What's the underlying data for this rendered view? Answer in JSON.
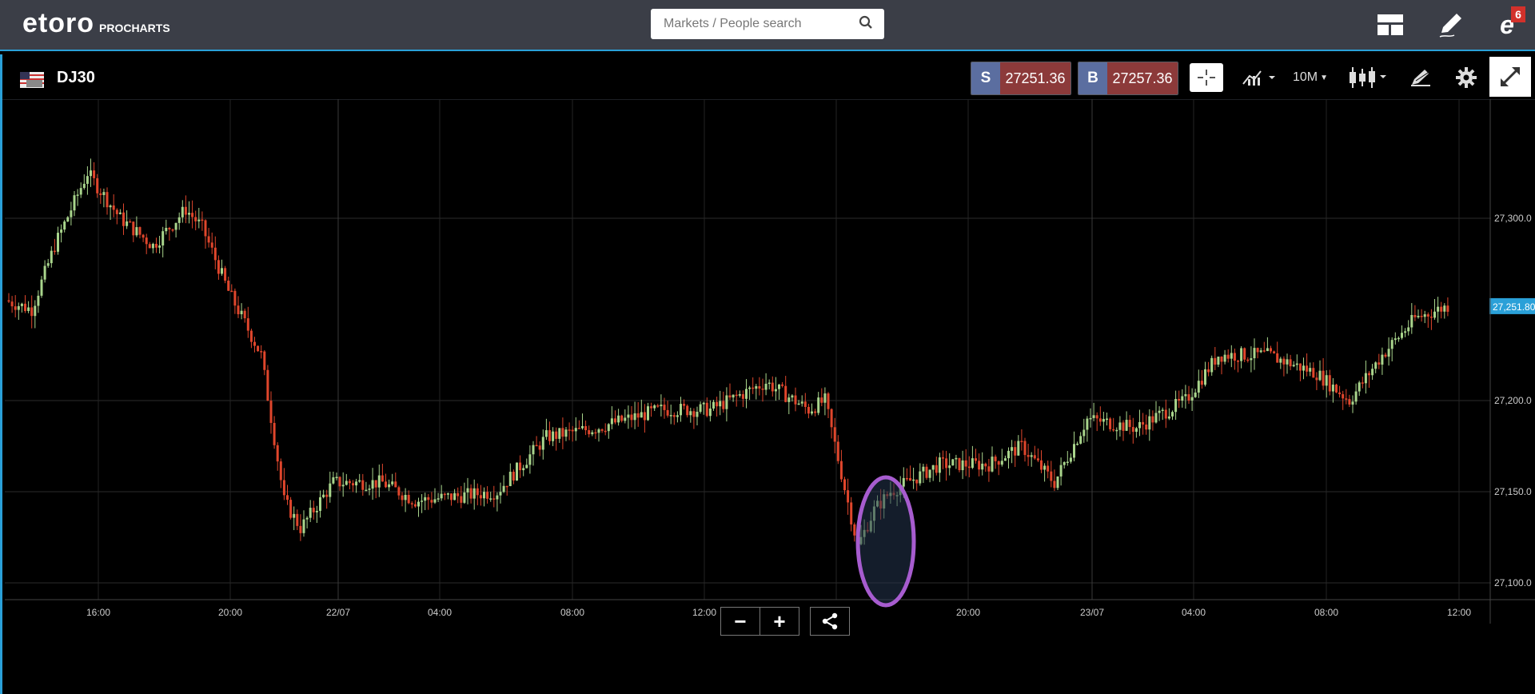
{
  "header": {
    "logo_text": "etoro",
    "logo_sub": "PROCHARTS",
    "search_placeholder": "Markets / People search",
    "notification_count": "6",
    "icons": [
      "layout-icon",
      "edit-icon",
      "profile-icon",
      "search-icon"
    ]
  },
  "instrument": {
    "symbol": "DJ30",
    "sell_label": "S",
    "sell_price": "27251.36",
    "buy_label": "B",
    "buy_price": "27257.36"
  },
  "toolbar": {
    "interval": "10M",
    "icons": [
      "crosshair-icon",
      "indicators-icon",
      "candlestick-icon",
      "drawing-icon",
      "gear-icon",
      "fullscreen-icon"
    ]
  },
  "chart_controls": {
    "zoom_out": "−",
    "zoom_in": "+",
    "share_icon": "share-icon"
  },
  "colors": {
    "up": "#a9d58c",
    "down": "#e0462c",
    "accent": "#2aa0d8",
    "highlight": "#9b59b6"
  },
  "chart_data": {
    "type": "candlestick",
    "ylim": [
      27090,
      27345
    ],
    "y_ticks": [
      {
        "value": 27300,
        "label": "27,300.0"
      },
      {
        "value": 27250,
        "label": "27,251.80",
        "current": true
      },
      {
        "value": 27200,
        "label": "27,200.0"
      },
      {
        "value": 27150,
        "label": "27,150.0"
      },
      {
        "value": 27100,
        "label": "27,100.0"
      }
    ],
    "x_ticks": [
      "16:00",
      "20:00",
      "22/07",
      "04:00",
      "08:00",
      "12:00",
      "16:00",
      "20:00",
      "23/07",
      "04:00",
      "08:00",
      "12:00"
    ],
    "waypoints": [
      [
        0,
        27255
      ],
      [
        8,
        27250
      ],
      [
        15,
        27285
      ],
      [
        25,
        27325
      ],
      [
        35,
        27300
      ],
      [
        45,
        27285
      ],
      [
        55,
        27305
      ],
      [
        60,
        27295
      ],
      [
        68,
        27260
      ],
      [
        78,
        27225
      ],
      [
        85,
        27145
      ],
      [
        90,
        27130
      ],
      [
        100,
        27155
      ],
      [
        115,
        27155
      ],
      [
        125,
        27145
      ],
      [
        140,
        27148
      ],
      [
        150,
        27150
      ],
      [
        165,
        27180
      ],
      [
        180,
        27185
      ],
      [
        200,
        27195
      ],
      [
        215,
        27195
      ],
      [
        232,
        27210
      ],
      [
        245,
        27195
      ],
      [
        250,
        27200
      ],
      [
        255,
        27160
      ],
      [
        260,
        27120
      ],
      [
        265,
        27140
      ],
      [
        270,
        27150
      ],
      [
        285,
        27165
      ],
      [
        300,
        27165
      ],
      [
        310,
        27175
      ],
      [
        320,
        27155
      ],
      [
        330,
        27190
      ],
      [
        345,
        27185
      ],
      [
        360,
        27200
      ],
      [
        370,
        27225
      ],
      [
        385,
        27225
      ],
      [
        400,
        27215
      ],
      [
        410,
        27200
      ],
      [
        420,
        27225
      ],
      [
        430,
        27245
      ],
      [
        440,
        27252
      ]
    ],
    "highlight": {
      "label": "flash-crash-circle"
    }
  }
}
